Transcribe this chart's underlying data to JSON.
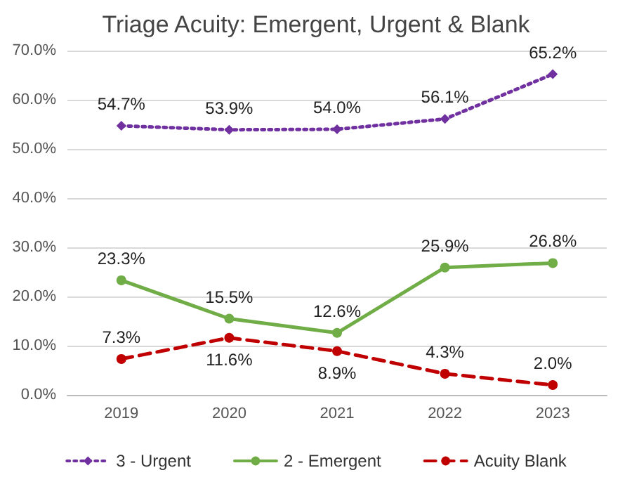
{
  "chart_data": {
    "type": "line",
    "title": "Triage Acuity: Emergent, Urgent & Blank",
    "categories": [
      "2019",
      "2020",
      "2021",
      "2022",
      "2023"
    ],
    "series": [
      {
        "name": "3 - Urgent",
        "color": "#7030a0",
        "values": [
          54.7,
          53.9,
          54.0,
          56.1,
          65.2
        ],
        "value_labels": [
          "54.7%",
          "53.9%",
          "54.0%",
          "56.1%",
          "65.2%"
        ],
        "line_style": "dotted",
        "marker": "diamond"
      },
      {
        "name": "2 - Emergent",
        "color": "#70ad47",
        "values": [
          23.3,
          15.5,
          12.6,
          25.9,
          26.8
        ],
        "value_labels": [
          "23.3%",
          "15.5%",
          "12.6%",
          "25.9%",
          "26.8%"
        ],
        "line_style": "solid",
        "marker": "circle"
      },
      {
        "name": "Acuity Blank",
        "color": "#c00000",
        "values": [
          7.3,
          11.6,
          8.9,
          4.3,
          2.0
        ],
        "value_labels": [
          "7.3%",
          "11.6%",
          "8.9%",
          "4.3%",
          "2.0%"
        ],
        "line_style": "dashed",
        "marker": "circle"
      }
    ],
    "ylim": [
      0,
      70
    ],
    "yticks": [
      {
        "value": 0,
        "label": "0.0%"
      },
      {
        "value": 10,
        "label": "10.0%"
      },
      {
        "value": 20,
        "label": "20.0%"
      },
      {
        "value": 30,
        "label": "30.0%"
      },
      {
        "value": 40,
        "label": "40.0%"
      },
      {
        "value": 50,
        "label": "50.0%"
      },
      {
        "value": 60,
        "label": "60.0%"
      },
      {
        "value": 70,
        "label": "70.0%"
      }
    ],
    "grid": "y",
    "legend": "bottom"
  }
}
